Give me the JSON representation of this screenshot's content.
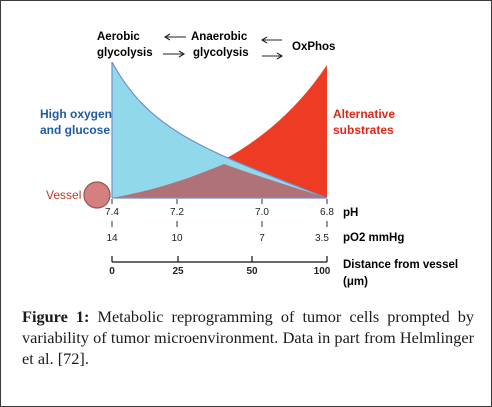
{
  "diagram": {
    "top_labels": {
      "aerobic": [
        "Aerobic",
        "glycolysis"
      ],
      "anaerobic": [
        "Anaerobic",
        "glycolysis"
      ],
      "oxphos": "OxPhos"
    },
    "left_label": [
      "High oxygen",
      "and glucose"
    ],
    "right_label": [
      "Alternative",
      "substrates"
    ],
    "vessel_label": "Vessel",
    "colors": {
      "left_fill": "#90d8ea",
      "right_fill": "#ee3b24",
      "overlap_fill": "#b07279",
      "left_text": "#1f5aa6",
      "right_text": "#e02717",
      "vessel_fill": "#d48080",
      "vessel_text": "#c0392b"
    },
    "ph": {
      "ticks": [
        "7.4",
        "7.2",
        "7.0",
        "6.8"
      ],
      "unit": "pH"
    },
    "po2": {
      "ticks": [
        "14",
        "10",
        "7",
        "3.5"
      ],
      "unit": "pO2 mmHg"
    },
    "distance": {
      "ticks": [
        "0",
        "25",
        "50",
        "100"
      ],
      "label": [
        "Distance from vessel",
        "(μm)"
      ]
    }
  },
  "caption": {
    "figure_label": "Figure 1:",
    "text": " Metabolic reprogramming of tumor cells prompted by variability of tumor microenvironment. Data in part from Helmlinger et al. [72]."
  }
}
